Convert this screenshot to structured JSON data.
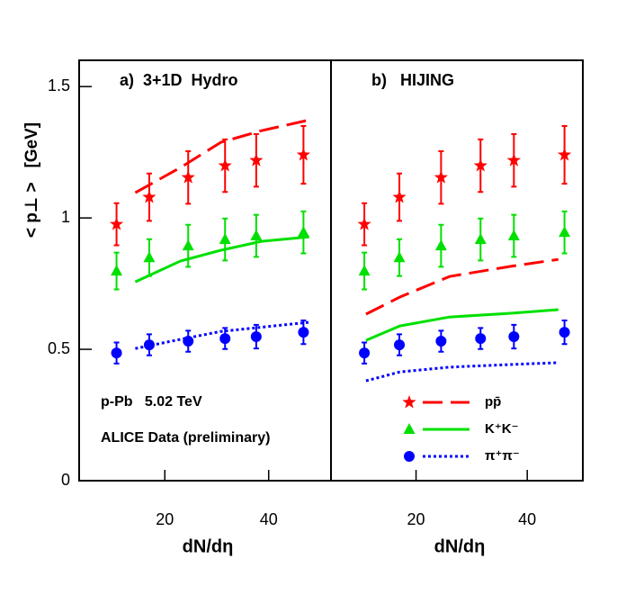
{
  "chart_data": [
    {
      "type": "scatter",
      "title": "a)  3+1D  Hydro",
      "ylabel": "< p⊥ >   [GeV]",
      "xlabel": "dN/dη",
      "annotations": [
        "p-Pb   5.02 TeV",
        "ALICE Data (preliminary)"
      ],
      "xlim": [
        3.5,
        52
      ],
      "ylim": [
        0,
        1.6
      ],
      "xticks": [
        20,
        40
      ],
      "yticks": [
        0,
        0.5,
        1,
        1.5
      ],
      "x": [
        10.7,
        17,
        24.5,
        31.6,
        37.6,
        46.7
      ],
      "series": [
        {
          "color": "#ff0000",
          "marker": "star",
          "values": [
            0.976,
            1.079,
            1.154,
            1.199,
            1.219,
            1.24
          ],
          "errors": [
            0.08,
            0.09,
            0.1,
            0.1,
            0.1,
            0.11
          ]
        },
        {
          "color": "#00e000",
          "marker": "triangle",
          "values": [
            0.798,
            0.849,
            0.894,
            0.918,
            0.932,
            0.945
          ],
          "errors": [
            0.07,
            0.07,
            0.08,
            0.08,
            0.08,
            0.08
          ]
        },
        {
          "color": "#0000ff",
          "marker": "circle",
          "values": [
            0.486,
            0.517,
            0.531,
            0.541,
            0.548,
            0.565
          ],
          "errors": [
            0.04,
            0.04,
            0.04,
            0.04,
            0.045,
            0.045
          ]
        }
      ],
      "curves": [
        {
          "color": "#ff0000",
          "dash": "dashed",
          "x": [
            14.3,
            23,
            30.8,
            38.6,
            47.8
          ],
          "values": [
            1.096,
            1.192,
            1.288,
            1.332,
            1.373
          ]
        },
        {
          "color": "#00e000",
          "dash": "solid",
          "x": [
            14.3,
            23,
            30.8,
            38.6,
            47.8
          ],
          "values": [
            0.757,
            0.836,
            0.877,
            0.911,
            0.928
          ]
        },
        {
          "color": "#0000ff",
          "dash": "dotted",
          "x": [
            14.3,
            23,
            30.8,
            47.8
          ],
          "values": [
            0.503,
            0.538,
            0.568,
            0.603
          ]
        }
      ]
    },
    {
      "type": "scatter",
      "title": "b)   HIJING",
      "xlabel": "dN/dη",
      "xlim": [
        4.7,
        50
      ],
      "ylim": [
        0,
        1.6
      ],
      "xticks": [
        20,
        40
      ],
      "legend": "lower right",
      "x": [
        10.7,
        17,
        24.5,
        31.6,
        37.6,
        46.7
      ],
      "series": [
        {
          "name": "pp̄",
          "color": "#ff0000",
          "marker": "star",
          "values": [
            0.976,
            1.079,
            1.154,
            1.199,
            1.219,
            1.24
          ],
          "errors": [
            0.08,
            0.09,
            0.1,
            0.1,
            0.1,
            0.11
          ]
        },
        {
          "name": "K⁺K⁻",
          "color": "#00e000",
          "marker": "triangle",
          "values": [
            0.798,
            0.849,
            0.894,
            0.918,
            0.932,
            0.945
          ],
          "errors": [
            0.07,
            0.07,
            0.08,
            0.08,
            0.08,
            0.08
          ]
        },
        {
          "name": "π⁺π⁻",
          "color": "#0000ff",
          "marker": "circle",
          "values": [
            0.486,
            0.517,
            0.531,
            0.541,
            0.548,
            0.565
          ],
          "errors": [
            0.04,
            0.04,
            0.04,
            0.04,
            0.045,
            0.045
          ]
        }
      ],
      "curves": [
        {
          "color": "#ff0000",
          "dash": "dashed",
          "x": [
            11,
            17.1,
            26,
            36.8,
            45.6
          ],
          "values": [
            0.634,
            0.699,
            0.777,
            0.815,
            0.842
          ]
        },
        {
          "color": "#00e000",
          "dash": "solid",
          "x": [
            11,
            17.1,
            26,
            36.8,
            45.6
          ],
          "values": [
            0.534,
            0.589,
            0.623,
            0.637,
            0.651
          ]
        },
        {
          "color": "#0000ff",
          "dash": "dotted",
          "x": [
            11,
            17.1,
            26,
            36.8,
            45.6
          ],
          "values": [
            0.38,
            0.414,
            0.432,
            0.442,
            0.449
          ]
        }
      ]
    }
  ]
}
